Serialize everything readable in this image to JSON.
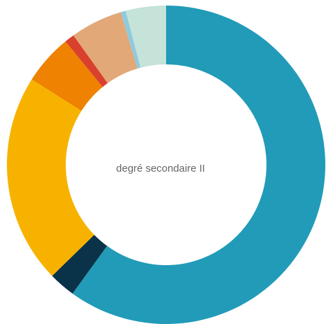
{
  "chart_data": {
    "type": "donut",
    "center_label": "degré secondaire II",
    "values": [
      60.0,
      2.7,
      21.3,
      5.1,
      1.0,
      5.3,
      0.5,
      4.1
    ],
    "colors": [
      "#219bb8",
      "#0a3249",
      "#f7b200",
      "#ef8200",
      "#d9412e",
      "#e2a878",
      "#8ecae0",
      "#c5e3d8"
    ]
  }
}
